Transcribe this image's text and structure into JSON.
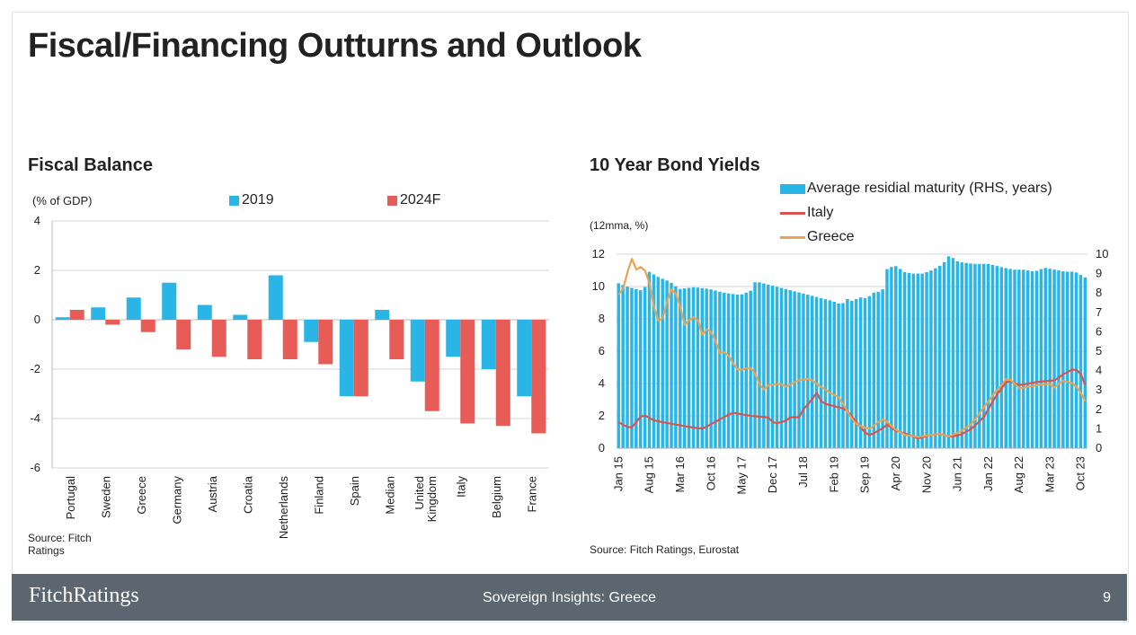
{
  "page": {
    "title": "Fiscal/Financing Outturns and Outlook"
  },
  "colors": {
    "blue": "#29b6e6",
    "red": "#e85c58",
    "italy": "#d9534f",
    "greece": "#e8a355",
    "footer": "#5b6670"
  },
  "left": {
    "title": "Fiscal Balance",
    "unit": "(% of GDP)",
    "source": [
      "Source: Fitch",
      "Ratings"
    ]
  },
  "right": {
    "title": "10 Year Bond Yields",
    "unit": "(12mma, %)",
    "source": "Source: Fitch Ratings, Eurostat"
  },
  "footer": {
    "brand": "FitchRatings",
    "center": "Sovereign Insights: Greece",
    "page": "9"
  },
  "chart_data": [
    {
      "type": "bar",
      "title": "Fiscal Balance",
      "ylabel": "(% of GDP)",
      "ylim": [
        -6,
        4
      ],
      "yticks": [
        4,
        2,
        0,
        -2,
        -4,
        -6
      ],
      "grid": true,
      "legend": "top",
      "categories": [
        "Portugal",
        "Sweden",
        "Greece",
        "Germany",
        "Austria",
        "Croatia",
        "Netherlands",
        "Finland",
        "Spain",
        "Median",
        "United Kingdom",
        "Italy",
        "Belgium",
        "France"
      ],
      "category_lines": [
        [
          "Portugal"
        ],
        [
          "Sweden"
        ],
        [
          "Greece"
        ],
        [
          "Germany"
        ],
        [
          "Austria"
        ],
        [
          "Croatia"
        ],
        [
          "Netherlands"
        ],
        [
          "Finland"
        ],
        [
          "Spain"
        ],
        [
          "Median"
        ],
        [
          "United",
          "Kingdom"
        ],
        [
          "Italy"
        ],
        [
          "Belgium"
        ],
        [
          "France"
        ]
      ],
      "series": [
        {
          "name": "2019",
          "color": "#29b6e6",
          "values": [
            0.1,
            0.5,
            0.9,
            1.5,
            0.6,
            0.2,
            1.8,
            -0.9,
            -3.1,
            0.4,
            -2.5,
            -1.5,
            -2.0,
            -3.1
          ]
        },
        {
          "name": "2024F",
          "color": "#e85c58",
          "values": [
            0.4,
            -0.2,
            -0.5,
            -1.2,
            -1.5,
            -1.6,
            -1.6,
            -1.8,
            -3.1,
            -1.6,
            -3.7,
            -4.2,
            -4.3,
            -4.6
          ]
        }
      ]
    },
    {
      "type": "line",
      "title": "10 Year Bond Yields",
      "ylabel": "(12mma, %)",
      "ylim": [
        0,
        12
      ],
      "yticks": [
        0,
        2,
        4,
        6,
        8,
        10,
        12
      ],
      "y2lim": [
        0,
        10
      ],
      "y2ticks": [
        0,
        1,
        2,
        3,
        4,
        5,
        6,
        7,
        8,
        9,
        10
      ],
      "xticks": [
        "Jan 15",
        "Aug 15",
        "Mar 16",
        "Oct 16",
        "May 17",
        "Dec 17",
        "Jul 18",
        "Feb 19",
        "Sep 19",
        "Apr 20",
        "Nov 20",
        "Jun 21",
        "Jan 22",
        "Aug 22",
        "Mar 23",
        "Oct 23"
      ],
      "legend": "top-right",
      "grid": true,
      "series": [
        {
          "name": "Average residial maturity (RHS, years)",
          "kind": "bar",
          "axis": "right",
          "color": "#29b6e6",
          "anchors": [
            [
              0,
              8.5
            ],
            [
              2,
              8.3
            ],
            [
              5,
              8.1
            ],
            [
              6,
              9.1
            ],
            [
              8,
              8.8
            ],
            [
              10,
              8.6
            ],
            [
              12,
              8.2
            ],
            [
              15,
              8.3
            ],
            [
              18,
              8.2
            ],
            [
              21,
              8.0
            ],
            [
              24,
              7.9
            ],
            [
              26,
              8.1
            ],
            [
              27,
              8.6
            ],
            [
              30,
              8.4
            ],
            [
              33,
              8.2
            ],
            [
              36,
              8.0
            ],
            [
              39,
              7.8
            ],
            [
              42,
              7.6
            ],
            [
              44,
              7.4
            ],
            [
              45,
              7.7
            ],
            [
              46,
              7.6
            ],
            [
              48,
              7.8
            ],
            [
              49,
              7.7
            ],
            [
              50,
              8.0
            ],
            [
              52,
              8.1
            ],
            [
              53,
              9.3
            ],
            [
              55,
              9.4
            ],
            [
              56,
              9.1
            ],
            [
              58,
              9.0
            ],
            [
              60,
              9.0
            ],
            [
              62,
              9.2
            ],
            [
              64,
              9.5
            ],
            [
              65,
              9.9
            ],
            [
              66,
              9.8
            ],
            [
              67,
              9.6
            ],
            [
              70,
              9.5
            ],
            [
              73,
              9.5
            ],
            [
              76,
              9.3
            ],
            [
              78,
              9.2
            ],
            [
              80,
              9.2
            ],
            [
              82,
              9.1
            ],
            [
              84,
              9.3
            ],
            [
              86,
              9.2
            ],
            [
              88,
              9.1
            ],
            [
              90,
              9.1
            ],
            [
              92,
              8.8
            ]
          ]
        },
        {
          "name": "Italy",
          "kind": "line",
          "axis": "left",
          "color": "#d9534f",
          "anchors": [
            [
              0,
              1.6
            ],
            [
              2,
              1.2
            ],
            [
              4,
              2.1
            ],
            [
              6,
              1.7
            ],
            [
              9,
              1.5
            ],
            [
              12,
              1.3
            ],
            [
              14,
              1.2
            ],
            [
              15,
              1.4
            ],
            [
              17,
              1.8
            ],
            [
              19,
              2.2
            ],
            [
              22,
              2.0
            ],
            [
              25,
              1.9
            ],
            [
              26,
              1.5
            ],
            [
              28,
              1.7
            ],
            [
              29,
              2.0
            ],
            [
              30,
              1.8
            ],
            [
              31,
              2.5
            ],
            [
              32,
              2.8
            ],
            [
              33,
              3.5
            ],
            [
              34,
              2.8
            ],
            [
              36,
              2.6
            ],
            [
              38,
              2.4
            ],
            [
              40,
              1.5
            ],
            [
              41,
              1.0
            ],
            [
              42,
              0.8
            ],
            [
              44,
              1.2
            ],
            [
              45,
              1.5
            ],
            [
              46,
              1.1
            ],
            [
              48,
              0.9
            ],
            [
              50,
              0.6
            ],
            [
              52,
              0.8
            ],
            [
              54,
              0.9
            ],
            [
              55,
              0.7
            ],
            [
              57,
              0.8
            ],
            [
              59,
              1.2
            ],
            [
              61,
              1.9
            ],
            [
              63,
              3.2
            ],
            [
              65,
              4.2
            ],
            [
              67,
              3.9
            ],
            [
              70,
              4.1
            ],
            [
              73,
              4.2
            ],
            [
              74,
              4.5
            ],
            [
              76,
              4.9
            ],
            [
              77,
              4.8
            ],
            [
              78,
              3.9
            ]
          ]
        },
        {
          "name": "Greece",
          "kind": "line",
          "axis": "left",
          "color": "#e8a355",
          "anchors": [
            [
              0,
              9.5
            ],
            [
              1,
              10.0
            ],
            [
              2,
              11.9
            ],
            [
              3,
              11.0
            ],
            [
              4,
              11.3
            ],
            [
              5,
              10.5
            ],
            [
              6,
              8.5
            ],
            [
              7,
              7.5
            ],
            [
              8,
              9.0
            ],
            [
              9,
              10.0
            ],
            [
              10,
              9.2
            ],
            [
              11,
              7.6
            ],
            [
              12,
              8.0
            ],
            [
              13,
              8.2
            ],
            [
              14,
              7.0
            ],
            [
              15,
              7.5
            ],
            [
              16,
              6.8
            ],
            [
              17,
              5.8
            ],
            [
              18,
              6.0
            ],
            [
              19,
              5.3
            ],
            [
              20,
              4.8
            ],
            [
              22,
              5.0
            ],
            [
              23,
              4.5
            ],
            [
              24,
              3.5
            ],
            [
              25,
              3.9
            ],
            [
              27,
              4.0
            ],
            [
              28,
              3.8
            ],
            [
              30,
              4.2
            ],
            [
              32,
              4.3
            ],
            [
              33,
              4.0
            ],
            [
              35,
              3.5
            ],
            [
              37,
              3.1
            ],
            [
              38,
              2.4
            ],
            [
              39,
              1.8
            ],
            [
              40,
              1.4
            ],
            [
              41,
              1.3
            ],
            [
              42,
              1.2
            ],
            [
              43,
              1.5
            ],
            [
              44,
              1.8
            ],
            [
              45,
              1.6
            ],
            [
              46,
              1.2
            ],
            [
              48,
              0.8
            ],
            [
              50,
              0.7
            ],
            [
              52,
              0.8
            ],
            [
              54,
              0.9
            ],
            [
              55,
              0.7
            ],
            [
              57,
              1.0
            ],
            [
              59,
              1.5
            ],
            [
              61,
              2.5
            ],
            [
              63,
              3.5
            ],
            [
              64,
              3.9
            ],
            [
              65,
              4.4
            ],
            [
              67,
              3.7
            ],
            [
              70,
              3.9
            ],
            [
              72,
              4.0
            ],
            [
              73,
              3.7
            ],
            [
              74,
              4.2
            ],
            [
              76,
              4.0
            ],
            [
              77,
              3.6
            ],
            [
              78,
              2.9
            ]
          ]
        }
      ]
    }
  ]
}
